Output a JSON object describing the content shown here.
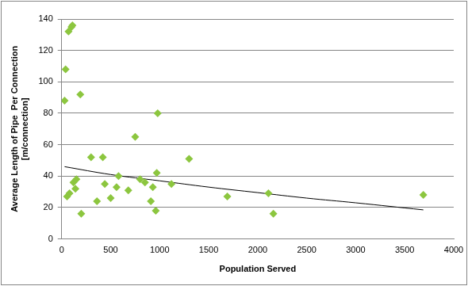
{
  "chart_data": {
    "type": "scatter",
    "x_label": "Population Served",
    "y_label": [
      "Average Length of Pipe  Per Connection",
      "[m/connection]"
    ],
    "xlim": [
      0,
      4000
    ],
    "xticks": [
      0,
      500,
      1000,
      1500,
      2000,
      2500,
      3000,
      3500,
      4000
    ],
    "ylim": [
      0,
      140
    ],
    "yticks": [
      0,
      20,
      40,
      60,
      80,
      100,
      120,
      140
    ],
    "grid": true,
    "series": [
      {
        "type": "scatter",
        "color": "#8cc63f",
        "marker": "diamond",
        "line_style": "none",
        "x": [
          30,
          40,
          55,
          70,
          80,
          100,
          110,
          120,
          140,
          150,
          190,
          200,
          300,
          360,
          420,
          440,
          500,
          560,
          580,
          680,
          750,
          800,
          850,
          910,
          930,
          960,
          970,
          980,
          1120,
          1300,
          1690,
          2110,
          2160,
          3690
        ],
        "values": [
          88,
          108,
          27,
          132,
          29,
          135,
          136,
          36,
          32,
          38,
          92,
          16,
          52,
          24,
          52,
          35,
          26,
          33,
          40,
          31,
          65,
          38,
          36,
          24,
          33,
          18,
          42,
          80,
          35,
          51,
          27,
          29,
          16,
          28
        ]
      },
      {
        "type": "line",
        "color": "#000000",
        "marker": "none",
        "line_style": "solid",
        "x": [
          30,
          500,
          1000,
          1500,
          2000,
          2500,
          3000,
          3690
        ],
        "values": [
          46,
          41,
          37,
          33,
          29.5,
          26,
          23,
          18.5
        ]
      }
    ]
  }
}
